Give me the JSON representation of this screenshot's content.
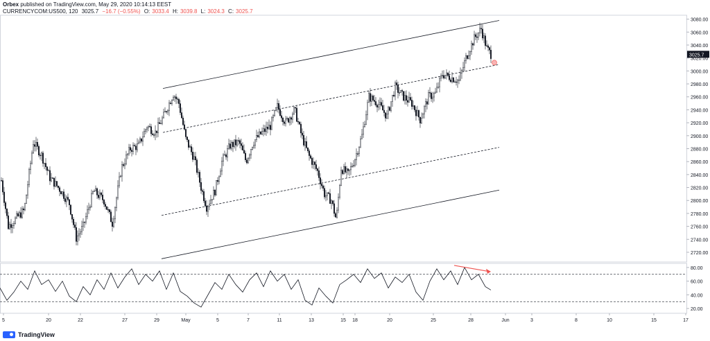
{
  "header": {
    "author": "Orbex",
    "published": "published on TradingView.com, May 29, 2020 10:14:13 EEST",
    "symbol": "CURRENCYCOM:US500, 120",
    "last": "3025.7",
    "change": "−16.7 (−0.55%)",
    "open_label": "O:",
    "open": "3033.4",
    "high_label": "H:",
    "high": "3039.8",
    "low_label": "L:",
    "low": "3024.3",
    "close_label": "C:",
    "close": "3025.7"
  },
  "footer": {
    "brand": "TradingView"
  },
  "chart_data": [
    {
      "type": "candlestick",
      "title": "CURRENCYCOM:US500, 120",
      "ylim": [
        2705,
        3086
      ],
      "y_ticks": [
        2720,
        2740,
        2760,
        2780,
        2800,
        2820,
        2840,
        2860,
        2880,
        2900,
        2920,
        2940,
        2960,
        2980,
        3000,
        3020,
        3040,
        3060,
        3080
      ],
      "last_price_label": "3025.7",
      "x_tick_labels": [
        "5",
        "20",
        "22",
        "27",
        "29",
        "May",
        "5",
        "7",
        "11",
        "13",
        "15",
        "18",
        "20",
        "25",
        "28",
        "Jun",
        "3",
        "8",
        "10",
        "15",
        "17"
      ],
      "price_path": [
        [
          0,
          2845
        ],
        [
          12,
          2760
        ],
        [
          35,
          2785
        ],
        [
          48,
          2890
        ],
        [
          60,
          2870
        ],
        [
          72,
          2835
        ],
        [
          88,
          2815
        ],
        [
          100,
          2795
        ],
        [
          110,
          2742
        ],
        [
          120,
          2760
        ],
        [
          135,
          2815
        ],
        [
          150,
          2800
        ],
        [
          162,
          2765
        ],
        [
          175,
          2850
        ],
        [
          188,
          2880
        ],
        [
          200,
          2885
        ],
        [
          212,
          2915
        ],
        [
          224,
          2905
        ],
        [
          236,
          2930
        ],
        [
          250,
          2965
        ],
        [
          258,
          2950
        ],
        [
          268,
          2895
        ],
        [
          280,
          2865
        ],
        [
          290,
          2820
        ],
        [
          298,
          2790
        ],
        [
          310,
          2815
        ],
        [
          320,
          2860
        ],
        [
          332,
          2885
        ],
        [
          345,
          2890
        ],
        [
          355,
          2860
        ],
        [
          365,
          2890
        ],
        [
          378,
          2905
        ],
        [
          390,
          2915
        ],
        [
          400,
          2945
        ],
        [
          412,
          2920
        ],
        [
          425,
          2940
        ],
        [
          435,
          2900
        ],
        [
          445,
          2870
        ],
        [
          458,
          2845
        ],
        [
          468,
          2810
        ],
        [
          478,
          2800
        ],
        [
          485,
          2770
        ],
        [
          492,
          2850
        ],
        [
          502,
          2840
        ],
        [
          512,
          2865
        ],
        [
          522,
          2900
        ],
        [
          532,
          2960
        ],
        [
          545,
          2950
        ],
        [
          558,
          2930
        ],
        [
          570,
          2975
        ],
        [
          582,
          2960
        ],
        [
          594,
          2950
        ],
        [
          606,
          2925
        ],
        [
          618,
          2960
        ],
        [
          628,
          2965
        ],
        [
          638,
          2995
        ],
        [
          650,
          2990
        ],
        [
          662,
          2985
        ],
        [
          672,
          3020
        ],
        [
          684,
          3050
        ],
        [
          694,
          3065
        ],
        [
          702,
          3035
        ],
        [
          708,
          3025.7
        ]
      ],
      "channel_lines": [
        {
          "style": "solid",
          "from": [
            235,
            2973
          ],
          "to": [
            720,
            3078
          ]
        },
        {
          "style": "dashed",
          "from": [
            235,
            2905
          ],
          "to": [
            720,
            3010
          ]
        },
        {
          "style": "dashed",
          "from": [
            233,
            2777
          ],
          "to": [
            720,
            2882
          ]
        },
        {
          "style": "solid",
          "from": [
            233,
            2710
          ],
          "to": [
            720,
            2816
          ]
        }
      ]
    },
    {
      "type": "line",
      "indicator": "oscillator",
      "ylim": [
        13,
        86
      ],
      "y_ticks": [
        20,
        40,
        60,
        80
      ],
      "reference_lines": [
        70,
        30
      ],
      "series": [
        {
          "values": [
            [
              0,
              50
            ],
            [
              10,
              32
            ],
            [
              20,
              44
            ],
            [
              30,
              60
            ],
            [
              40,
              48
            ],
            [
              50,
              75
            ],
            [
              60,
              55
            ],
            [
              70,
              62
            ],
            [
              80,
              45
            ],
            [
              90,
              60
            ],
            [
              100,
              38
            ],
            [
              110,
              30
            ],
            [
              120,
              52
            ],
            [
              130,
              40
            ],
            [
              140,
              62
            ],
            [
              150,
              48
            ],
            [
              160,
              72
            ],
            [
              170,
              50
            ],
            [
              180,
              66
            ],
            [
              190,
              78
            ],
            [
              200,
              55
            ],
            [
              210,
              70
            ],
            [
              220,
              60
            ],
            [
              230,
              75
            ],
            [
              240,
              48
            ],
            [
              250,
              72
            ],
            [
              260,
              45
            ],
            [
              270,
              38
            ],
            [
              280,
              28
            ],
            [
              290,
              22
            ],
            [
              300,
              40
            ],
            [
              310,
              58
            ],
            [
              320,
              48
            ],
            [
              330,
              70
            ],
            [
              340,
              55
            ],
            [
              350,
              44
            ],
            [
              360,
              62
            ],
            [
              370,
              72
            ],
            [
              380,
              52
            ],
            [
              390,
              75
            ],
            [
              400,
              60
            ],
            [
              410,
              70
            ],
            [
              420,
              48
            ],
            [
              430,
              62
            ],
            [
              440,
              32
            ],
            [
              450,
              25
            ],
            [
              460,
              50
            ],
            [
              470,
              38
            ],
            [
              480,
              28
            ],
            [
              490,
              55
            ],
            [
              500,
              62
            ],
            [
              510,
              70
            ],
            [
              520,
              58
            ],
            [
              530,
              78
            ],
            [
              540,
              64
            ],
            [
              550,
              72
            ],
            [
              560,
              50
            ],
            [
              570,
              66
            ],
            [
              580,
              58
            ],
            [
              590,
              70
            ],
            [
              600,
              44
            ],
            [
              610,
              32
            ],
            [
              620,
              60
            ],
            [
              630,
              78
            ],
            [
              640,
              62
            ],
            [
              650,
              75
            ],
            [
              660,
              55
            ],
            [
              670,
              80
            ],
            [
              680,
              62
            ],
            [
              690,
              70
            ],
            [
              700,
              52
            ],
            [
              708,
              47
            ]
          ]
        }
      ],
      "divergence_arrow": {
        "from": [
          655,
          83
        ],
        "to": [
          708,
          74
        ]
      }
    }
  ]
}
